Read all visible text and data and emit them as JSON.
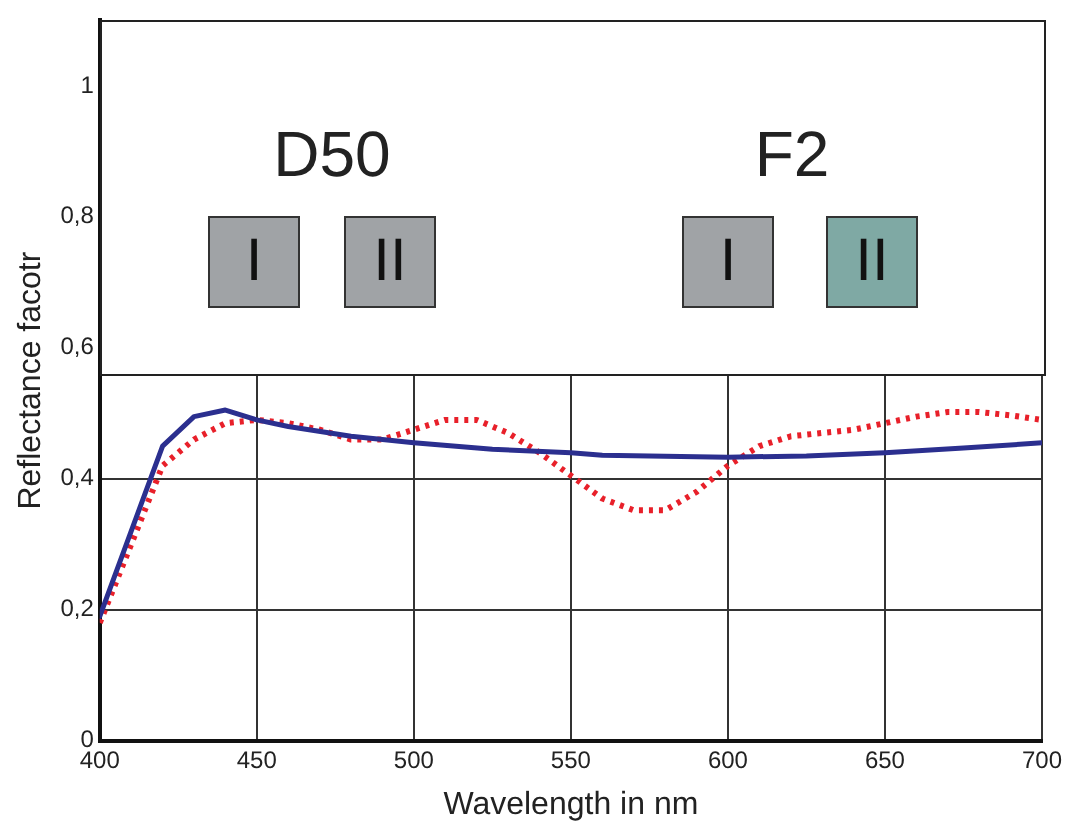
{
  "chart_data": {
    "type": "line",
    "xlabel": "Wavelength in nm",
    "ylabel": "Reflectance facotr",
    "xlim": [
      400,
      700
    ],
    "xticks": [
      400,
      450,
      500,
      550,
      600,
      650,
      700
    ],
    "ylim": [
      0,
      1.1
    ],
    "yticks": [
      0,
      {
        "value": 0.2,
        "label": "0,2"
      },
      {
        "value": 0.4,
        "label": "0,4"
      },
      {
        "value": 0.6,
        "label": "0,6"
      },
      {
        "value": 0.8,
        "label": "0,8"
      },
      1
    ],
    "grid": true,
    "legend": false,
    "marker": "none",
    "annotations": [
      "D50",
      "F2",
      "I",
      "II",
      "I",
      "II"
    ],
    "series": [
      {
        "color": "#2b2f8f",
        "line_style": "solid",
        "x": [
          400,
          420,
          430,
          440,
          450,
          460,
          480,
          500,
          525,
          550,
          560,
          600,
          625,
          650,
          675,
          700
        ],
        "values": [
          0.19,
          0.45,
          0.495,
          0.505,
          0.49,
          0.48,
          0.465,
          0.455,
          0.445,
          0.44,
          0.436,
          0.433,
          0.435,
          0.44,
          0.447,
          0.455
        ]
      },
      {
        "color": "#e8202a",
        "line_style": "dotted",
        "x": [
          400,
          410,
          420,
          430,
          440,
          450,
          460,
          470,
          480,
          490,
          500,
          510,
          520,
          530,
          540,
          550,
          560,
          570,
          580,
          590,
          600,
          610,
          620,
          630,
          640,
          650,
          660,
          670,
          680,
          690,
          700
        ],
        "values": [
          0.18,
          0.3,
          0.42,
          0.46,
          0.485,
          0.49,
          0.485,
          0.475,
          0.46,
          0.46,
          0.475,
          0.49,
          0.49,
          0.47,
          0.44,
          0.405,
          0.37,
          0.352,
          0.352,
          0.38,
          0.42,
          0.45,
          0.465,
          0.47,
          0.475,
          0.485,
          0.495,
          0.502,
          0.502,
          0.497,
          0.49
        ]
      }
    ]
  }
}
